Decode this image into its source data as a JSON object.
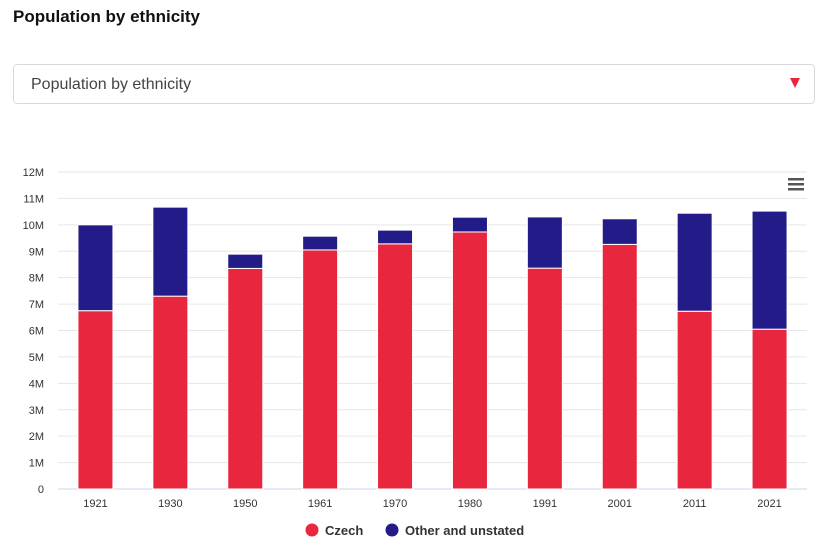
{
  "page": {
    "title": "Population by ethnicity"
  },
  "dropdown": {
    "selected": "Population by ethnicity"
  },
  "chart_menu": {
    "icon": "hamburger-menu-icon"
  },
  "chart_data": {
    "type": "bar",
    "stacked": true,
    "categories": [
      "1921",
      "1930",
      "1950",
      "1961",
      "1970",
      "1980",
      "1991",
      "2001",
      "2011",
      "2021"
    ],
    "series": [
      {
        "name": "Czech",
        "color": "#e8263d",
        "values": [
          6.75,
          7.3,
          8.35,
          9.05,
          9.28,
          9.73,
          8.36,
          9.26,
          6.73,
          6.05
        ]
      },
      {
        "name": "Other and unstated",
        "color": "#231b87",
        "values": [
          3.25,
          3.37,
          0.54,
          0.52,
          0.52,
          0.56,
          1.94,
          0.97,
          3.71,
          4.47
        ]
      }
    ],
    "unit": "M",
    "ylim": [
      0,
      12
    ],
    "yticks": [
      "0",
      "1M",
      "2M",
      "3M",
      "4M",
      "5M",
      "6M",
      "7M",
      "8M",
      "9M",
      "10M",
      "11M",
      "12M"
    ],
    "grid": true,
    "legend_position": "bottom-center",
    "title": "",
    "xlabel": "",
    "ylabel": ""
  }
}
